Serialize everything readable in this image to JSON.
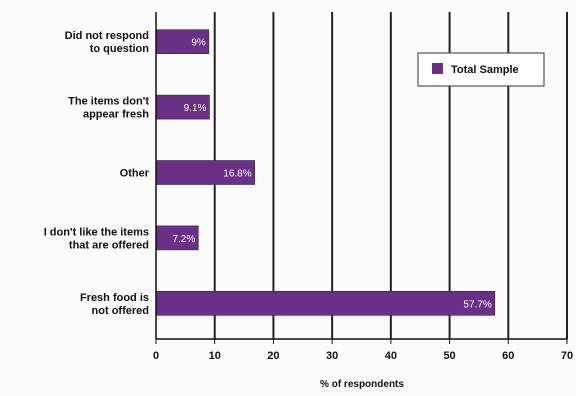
{
  "chart_data": {
    "type": "bar",
    "orientation": "horizontal",
    "categories": [
      [
        "Did not respond",
        "to question"
      ],
      [
        "The items don't",
        "appear fresh"
      ],
      [
        "Other"
      ],
      [
        "I don't like the items",
        "that are offered"
      ],
      [
        "Fresh food is",
        "not offered"
      ]
    ],
    "series": [
      {
        "name": "Total Sample",
        "values": [
          9,
          9.1,
          16.8,
          7.2,
          57.7
        ],
        "data_labels": [
          "9%",
          "9.1%",
          "16.8%",
          "7.2%",
          "57.7%"
        ]
      }
    ],
    "xlabel": "% of respondents",
    "xlim": [
      0,
      70
    ],
    "xticks": [
      0,
      10,
      20,
      30,
      40,
      50,
      60,
      70
    ],
    "grid": "vertical",
    "legend_position": "top-right",
    "colors": {
      "bar": "#6a2f86",
      "grid": "#222222",
      "axis": "#111111",
      "legend_border": "#333333",
      "background": "#fbfbfb"
    }
  }
}
